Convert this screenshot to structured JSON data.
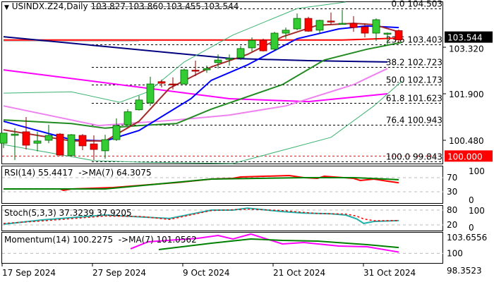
{
  "header": {
    "symbol": "USINDX.Z24,Daily",
    "ohlc": "103.827 103.860 103.455 103.544",
    "menu_icon": "triangle-down-icon"
  },
  "price_scale": {
    "labels": [
      {
        "price": 103.32,
        "text": "103.320"
      },
      {
        "price": 101.9,
        "text": "101.900"
      },
      {
        "price": 100.48,
        "text": "100.480"
      }
    ],
    "current_price": {
      "price": 103.544,
      "text": "103.544",
      "color": "#000000"
    },
    "alert_price": {
      "price": 100.0,
      "text": "100.000",
      "color": "#ff0000"
    }
  },
  "x_axis": {
    "labels": [
      {
        "index": 0,
        "text": "17 Sep 2024"
      },
      {
        "index": 8,
        "text": "27 Sep 2024"
      },
      {
        "index": 16,
        "text": "9 Oct 2024"
      },
      {
        "index": 24,
        "text": "21 Oct 2024"
      },
      {
        "index": 32,
        "text": "31 Oct 2024"
      }
    ]
  },
  "chart_data": [
    {
      "type": "candlestick",
      "title": "USINDX.Z24,Daily",
      "colors": {
        "up": "#33cc33",
        "down": "#ff0000"
      },
      "ylim": [
        99.7,
        104.75
      ],
      "candles_ohlc": [
        [
          100.39,
          100.7,
          100.24,
          100.7
        ],
        [
          100.63,
          100.85,
          99.88,
          100.67
        ],
        [
          100.74,
          101.19,
          100.2,
          100.33
        ],
        [
          100.39,
          100.74,
          100.14,
          100.46
        ],
        [
          100.48,
          100.95,
          100.39,
          100.63
        ],
        [
          100.67,
          100.7,
          100.0,
          100.03
        ],
        [
          100.02,
          100.67,
          100.0,
          100.65
        ],
        [
          100.63,
          100.67,
          100.18,
          100.31
        ],
        [
          100.37,
          100.63,
          99.88,
          100.2
        ],
        [
          100.16,
          100.65,
          99.92,
          100.5
        ],
        [
          100.5,
          101.15,
          100.46,
          100.93
        ],
        [
          100.95,
          101.43,
          100.95,
          101.35
        ],
        [
          101.41,
          101.84,
          101.39,
          101.71
        ],
        [
          101.62,
          102.42,
          101.53,
          102.2
        ],
        [
          102.27,
          102.33,
          102.09,
          102.22
        ],
        [
          102.2,
          102.4,
          102.03,
          102.19
        ],
        [
          102.2,
          102.67,
          102.18,
          102.63
        ],
        [
          102.62,
          102.91,
          102.44,
          102.59
        ],
        [
          102.63,
          102.76,
          102.54,
          102.67
        ],
        [
          102.85,
          103.1,
          102.67,
          102.93
        ],
        [
          102.97,
          103.1,
          102.76,
          102.98
        ],
        [
          103.0,
          103.36,
          102.93,
          103.28
        ],
        [
          103.3,
          103.62,
          103.19,
          103.53
        ],
        [
          103.53,
          103.58,
          103.19,
          103.21
        ],
        [
          103.26,
          103.79,
          103.21,
          103.75
        ],
        [
          103.75,
          103.92,
          103.58,
          103.84
        ],
        [
          103.88,
          104.35,
          103.84,
          104.2
        ],
        [
          104.2,
          104.25,
          103.79,
          103.81
        ],
        [
          103.84,
          104.16,
          103.73,
          104.14
        ],
        [
          104.12,
          104.38,
          104.01,
          104.1
        ],
        [
          104.03,
          104.46,
          104.03,
          104.05
        ],
        [
          104.05,
          104.27,
          103.79,
          103.92
        ],
        [
          103.94,
          104.05,
          103.62,
          103.75
        ],
        [
          103.75,
          104.2,
          103.51,
          104.16
        ],
        [
          103.73,
          103.77,
          103.41,
          103.75
        ],
        [
          103.827,
          103.86,
          103.455,
          103.544
        ]
      ],
      "overlays": [
        {
          "color": "#c0c0c0",
          "width": 1,
          "points": [
            [
              0,
              103.5
            ],
            [
              12,
              103.5
            ]
          ]
        },
        {
          "color": "#ff0000",
          "width": 2,
          "points": [
            [
              0,
              103.54
            ],
            [
              30,
              103.54
            ],
            [
              35,
              103.6
            ]
          ]
        },
        {
          "color": "#000080",
          "width": 2,
          "points": [
            [
              0,
              103.64
            ],
            [
              20,
              102.98
            ],
            [
              27,
              102.91
            ],
            [
              34,
              102.87
            ]
          ]
        },
        {
          "color": "#ff00ff",
          "width": 2,
          "points": [
            [
              0,
              102.63
            ],
            [
              20,
              101.75
            ],
            [
              27,
              101.66
            ],
            [
              34,
              101.9
            ]
          ]
        },
        {
          "color": "#ee82ee",
          "width": 2,
          "points": [
            [
              0,
              101.53
            ],
            [
              8.4,
              100.93
            ],
            [
              15.3,
              101.1
            ],
            [
              20,
              101.25
            ],
            [
              25,
              101.53
            ],
            [
              31,
              102.18
            ],
            [
              34,
              102.67
            ]
          ]
        },
        {
          "color": "#3cb371",
          "width": 1,
          "points": [
            [
              0,
              101.92
            ],
            [
              6,
              101.96
            ],
            [
              10.3,
              101.64
            ],
            [
              12.8,
              101.96
            ],
            [
              16,
              102.87
            ],
            [
              20.3,
              103.69
            ],
            [
              26,
              104.5
            ],
            [
              30.3,
              104.7
            ]
          ]
        },
        {
          "color": "#3cb371",
          "width": 1,
          "points": [
            [
              0,
              100.35
            ],
            [
              8,
              99.86
            ],
            [
              12.2,
              99.81
            ],
            [
              20.3,
              99.77
            ],
            [
              29,
              100.57
            ],
            [
              32.8,
              101.53
            ],
            [
              35.3,
              102.29
            ]
          ]
        },
        {
          "color": "#228b22",
          "width": 2,
          "points": [
            [
              0,
              101.1
            ],
            [
              6,
              100.99
            ],
            [
              9,
              100.85
            ],
            [
              12,
              100.93
            ],
            [
              15.3,
              100.99
            ],
            [
              18.4,
              101.43
            ],
            [
              24.7,
              102.18
            ],
            [
              28.4,
              102.93
            ],
            [
              32.2,
              103.26
            ],
            [
              35.3,
              103.47
            ]
          ]
        },
        {
          "color": "#0000ff",
          "width": 2,
          "points": [
            [
              0,
              101.06
            ],
            [
              6,
              100.5
            ],
            [
              9,
              100.46
            ],
            [
              12,
              100.78
            ],
            [
              16.6,
              101.75
            ],
            [
              18.4,
              102.31
            ],
            [
              21.6,
              102.78
            ],
            [
              26,
              103.58
            ],
            [
              29.7,
              103.88
            ],
            [
              32.2,
              103.97
            ],
            [
              35,
              103.92
            ]
          ]
        },
        {
          "color": "#a52a2a",
          "width": 2,
          "points": [
            [
              0,
              100.8
            ],
            [
              6,
              100.46
            ],
            [
              9,
              100.46
            ],
            [
              12,
              101.06
            ],
            [
              14.7,
              102.07
            ],
            [
              18.4,
              102.72
            ],
            [
              21.6,
              103.1
            ],
            [
              24.7,
              103.64
            ],
            [
              27.8,
              103.99
            ],
            [
              31,
              104.05
            ],
            [
              32.8,
              104.01
            ],
            [
              35,
              103.79
            ]
          ]
        }
      ],
      "fibonacci": [
        {
          "level": "0.0",
          "price": 104.503
        },
        {
          "level": "23.6",
          "price": 103.403
        },
        {
          "level": "38.2",
          "price": 102.723
        },
        {
          "level": "50.0",
          "price": 102.173
        },
        {
          "level": "61.8",
          "price": 101.623
        },
        {
          "level": "76.4",
          "price": 100.943
        },
        {
          "level": "100.0",
          "price": 99.843
        }
      ]
    },
    {
      "type": "line",
      "name": "RSI(14)",
      "label": "RSI(14) 55.4417  ->MA(7) 64.3075",
      "ylim": [
        0,
        100
      ],
      "levels": [
        70,
        30
      ],
      "scale_labels": [
        "100",
        "70",
        "30",
        "0"
      ],
      "series": [
        {
          "color": "#ff0000",
          "points": [
            [
              0,
              38
            ],
            [
              5,
              38
            ],
            [
              5.3,
              34
            ],
            [
              6,
              38
            ],
            [
              9.7,
              42
            ],
            [
              15.3,
              56
            ],
            [
              18.4,
              66
            ],
            [
              20.3,
              68
            ],
            [
              21,
              72
            ],
            [
              25.3,
              76
            ],
            [
              26.6,
              70
            ],
            [
              27.8,
              68
            ],
            [
              28.4,
              74
            ],
            [
              31,
              68
            ],
            [
              31.6,
              62
            ],
            [
              32.8,
              66
            ],
            [
              34,
              60
            ],
            [
              35,
              55.4417
            ]
          ]
        },
        {
          "color": "#008000",
          "points": [
            [
              0,
              38
            ],
            [
              9,
              38
            ],
            [
              18.4,
              66
            ],
            [
              26.6,
              70
            ],
            [
              31,
              70
            ],
            [
              35,
              64.3075
            ]
          ]
        }
      ]
    },
    {
      "type": "line",
      "name": "Stoch(5,3,3)",
      "label": "Stoch(5,3,3) 37.3239 37.9205",
      "ylim": [
        0,
        100
      ],
      "levels": [
        80,
        20
      ],
      "scale_labels": [
        "100",
        "80",
        "20",
        "0"
      ],
      "series": [
        {
          "color": "#20b2aa",
          "points": [
            [
              0,
              23
            ],
            [
              3.4,
              40
            ],
            [
              9,
              60
            ],
            [
              12.2,
              52
            ],
            [
              14.7,
              46
            ],
            [
              18.4,
              80
            ],
            [
              20.3,
              80
            ],
            [
              21.6,
              88
            ],
            [
              24.7,
              74
            ],
            [
              26.6,
              68
            ],
            [
              29,
              65
            ],
            [
              30.3,
              60
            ],
            [
              31.25,
              45
            ],
            [
              31.9,
              26
            ],
            [
              32.8,
              34
            ],
            [
              35,
              37.3239
            ]
          ]
        },
        {
          "color": "#ff0000",
          "dashed": true,
          "points": [
            [
              0,
              26
            ],
            [
              3.4,
              36
            ],
            [
              9,
              56
            ],
            [
              12.2,
              54
            ],
            [
              14.7,
              42
            ],
            [
              18.4,
              78
            ],
            [
              21.6,
              84
            ],
            [
              24.7,
              78
            ],
            [
              27.8,
              66
            ],
            [
              30.3,
              64
            ],
            [
              31.25,
              56
            ],
            [
              31.9,
              44
            ],
            [
              32.8,
              37
            ],
            [
              35,
              37.9205
            ]
          ]
        }
      ]
    },
    {
      "type": "line",
      "name": "Momentum(14)",
      "label": "Momentum(14) 100.2275  ->MA(7) 101.0562",
      "ylim": [
        98.3523,
        103.6556
      ],
      "levels": [
        100
      ],
      "scale_labels": [
        "103.6556",
        "100",
        "98.3523"
      ],
      "series": [
        {
          "color": "#ff00ff",
          "points": [
            [
              11.25,
              100.82
            ],
            [
              12.8,
              102.11
            ],
            [
              17.2,
              102.75
            ],
            [
              19,
              103.27
            ],
            [
              20.3,
              102.62
            ],
            [
              21.9,
              103.53
            ],
            [
              24.7,
              101.72
            ],
            [
              26.6,
              101.98
            ],
            [
              29.7,
              101.33
            ],
            [
              32.2,
              101.2
            ],
            [
              35,
              100.2275
            ]
          ]
        },
        {
          "color": "#008000",
          "points": [
            [
              13.75,
              100.69
            ],
            [
              18.4,
              101.85
            ],
            [
              21.9,
              102.62
            ],
            [
              24.7,
              102.37
            ],
            [
              27.8,
              102.24
            ],
            [
              32.2,
              101.59
            ],
            [
              35,
              101.0562
            ]
          ]
        }
      ]
    }
  ]
}
